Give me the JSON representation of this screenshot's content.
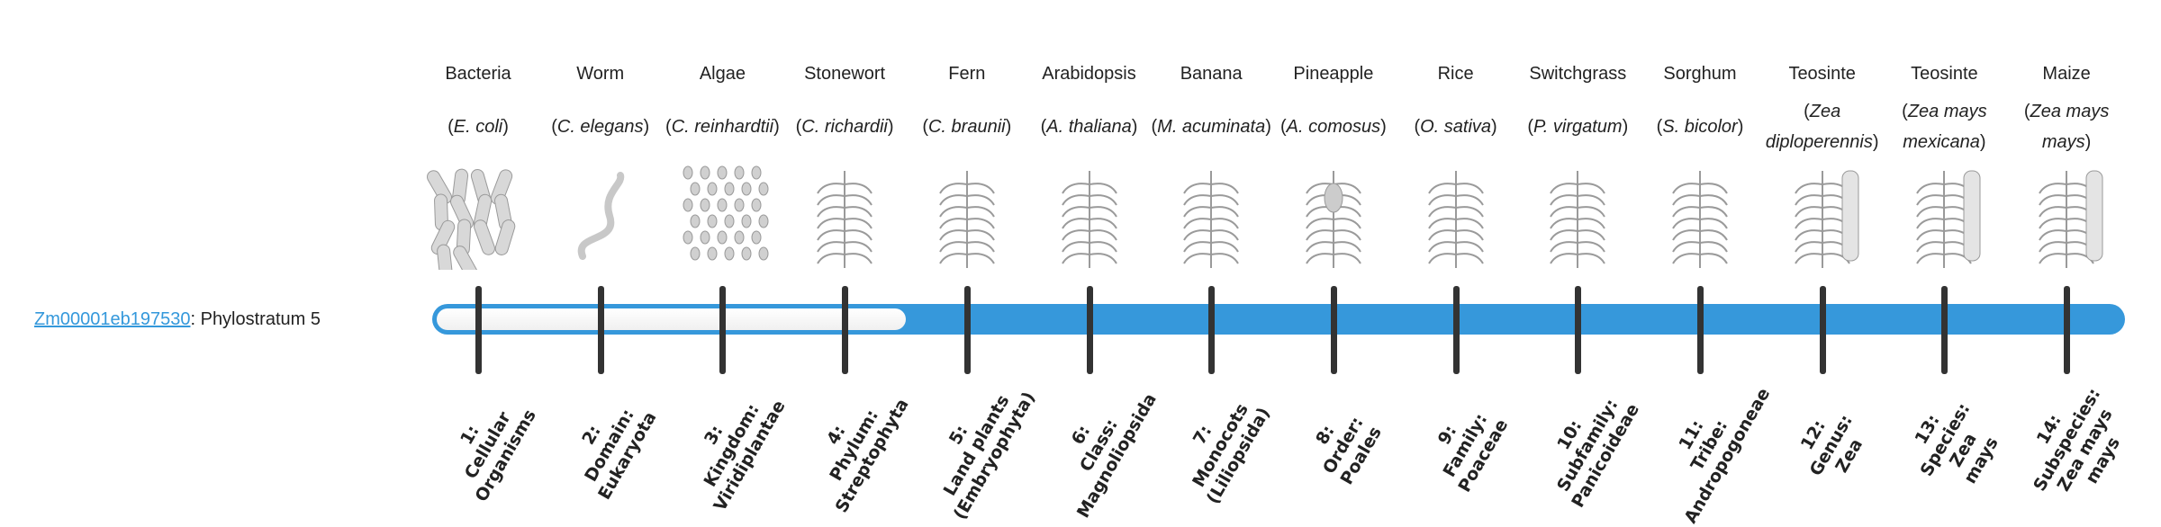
{
  "gene": {
    "id": "Zm00001eb197530",
    "suffix": ": Phylostratum 5"
  },
  "phylostratum": 5,
  "colors": {
    "bar": "#3698db",
    "tick": "#333333",
    "link": "#3498db",
    "illustration": "#9a9a9a"
  },
  "organisms": [
    {
      "common": "Bacteria",
      "scientific": "E. coli",
      "icon": "bacteria-rods-icon"
    },
    {
      "common": "Worm",
      "scientific": "C. elegans",
      "icon": "worm-icon"
    },
    {
      "common": "Algae",
      "scientific": "C. reinhardtii",
      "icon": "algae-cells-icon"
    },
    {
      "common": "Stonewort",
      "scientific": "C. richardii",
      "icon": "stonewort-icon"
    },
    {
      "common": "Fern",
      "scientific": "C. braunii",
      "icon": "fern-icon"
    },
    {
      "common": "Arabidopsis",
      "scientific": "A. thaliana",
      "icon": "arabidopsis-icon"
    },
    {
      "common": "Banana",
      "scientific": "M. acuminata",
      "icon": "banana-plant-icon"
    },
    {
      "common": "Pineapple",
      "scientific": "A. comosus",
      "icon": "pineapple-icon"
    },
    {
      "common": "Rice",
      "scientific": "O. sativa",
      "icon": "rice-icon"
    },
    {
      "common": "Switchgrass",
      "scientific": "P. virgatum",
      "icon": "switchgrass-icon"
    },
    {
      "common": "Sorghum",
      "scientific": "S. bicolor",
      "icon": "sorghum-icon"
    },
    {
      "common": "Teosinte",
      "scientific": "Zea diploperennis",
      "icon": "teosinte-icon"
    },
    {
      "common": "Teosinte",
      "scientific": "Zea mays mexicana",
      "icon": "teosinte-icon"
    },
    {
      "common": "Maize",
      "scientific": "Zea mays mays",
      "icon": "maize-icon"
    }
  ],
  "strata": [
    "1:\nCellular\nOrganisms",
    "2:\nDomain:\nEukaryota",
    "3:\nKingdom:\nViridiplantae",
    "4:\nPhylum:\nStreptophyta",
    "5:\nLand plants\n(Embryophyta)",
    "6:\nClass:\nMagnoliopsida",
    "7:\nMonocots\n(Liliopsida)",
    "8:\nOrder:\nPoales",
    "9:\nFamily:\nPoaceae",
    "10:\nSubfamily:\nPanicoideae",
    "11:\nTribe:\nAndropogoneae",
    "12:\nGenus:\nZea",
    "13:\nSpecies:\nZea\nmays",
    "14:\nSubspecies:\nZea mays\nmays"
  ]
}
